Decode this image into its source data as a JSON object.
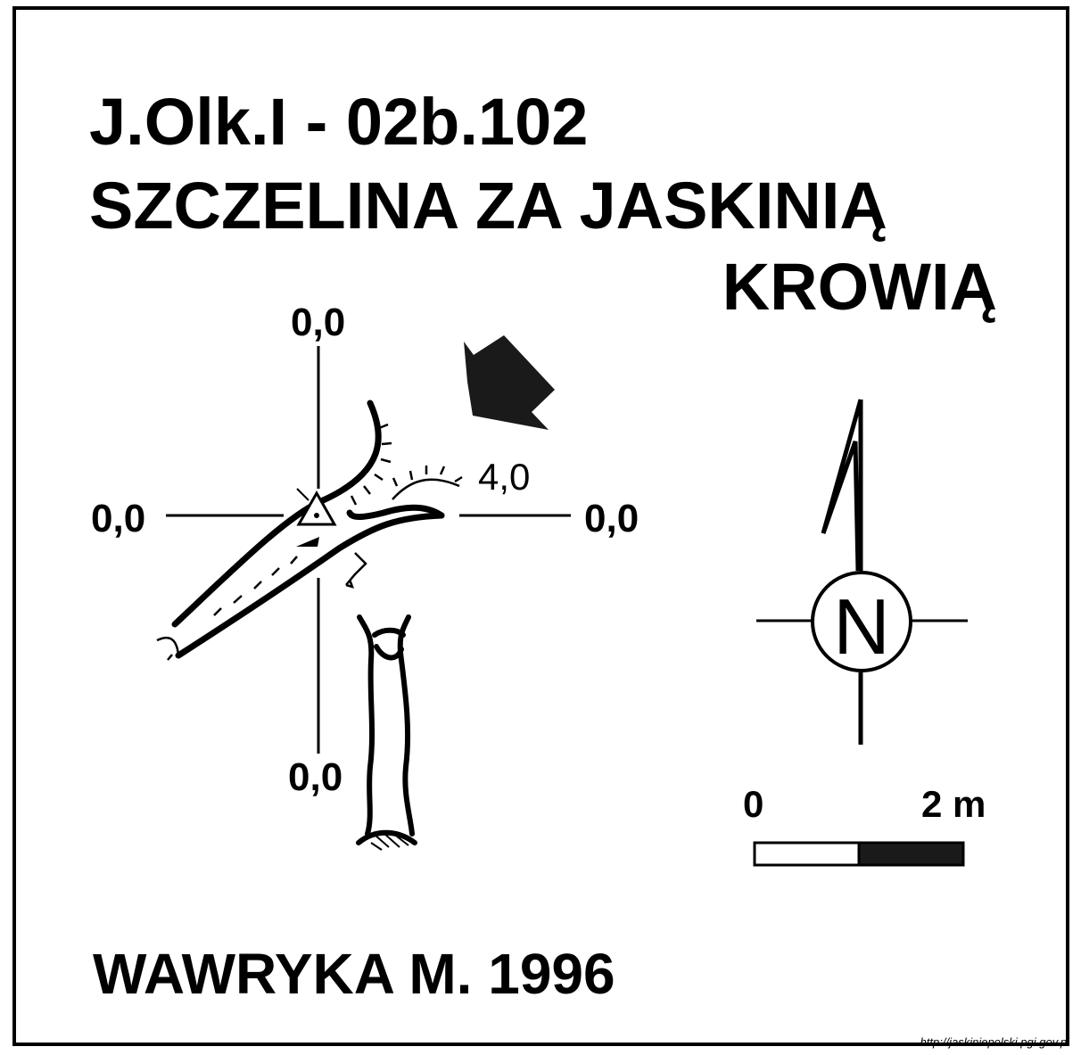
{
  "title": {
    "code": "J.Olk.I - 02b.102",
    "name_line1": "SZCZELINA ZA JASKINIĄ",
    "name_line2": "KROWIĄ"
  },
  "axes": {
    "top": "0,0",
    "left": "0,0",
    "right": "0,0",
    "bottom": "0,0"
  },
  "depth_label": "4,0",
  "compass": {
    "letter": "N"
  },
  "scale_bar": {
    "start": "0",
    "end": "2 m"
  },
  "author": "WAWRYKA M. 1996",
  "source_url": "http://jaskiniepolski.pgi.gov.pl"
}
